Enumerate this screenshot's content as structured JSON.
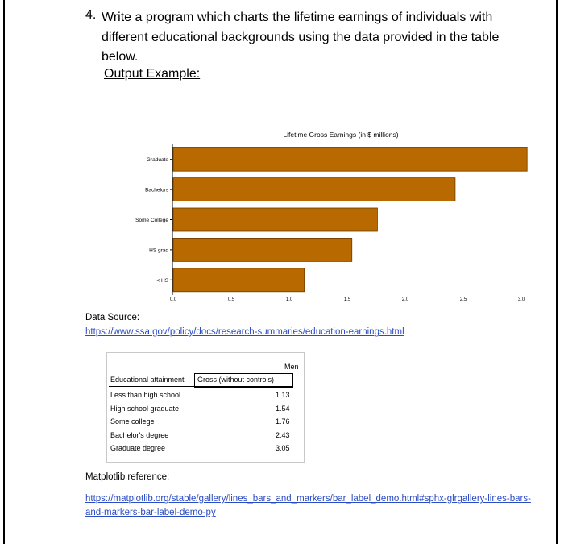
{
  "question": {
    "number": "4.",
    "text": "Write a program which charts the lifetime earnings of individuals with different educational backgrounds using the data provided in the table below.",
    "output_example": "Output Example:"
  },
  "chart_data": {
    "type": "bar",
    "orientation": "horizontal",
    "title": "Lifetime Gross Earnings (in $ millions)",
    "categories": [
      "Graduate",
      "Bachelors",
      "Some College",
      "HS grad",
      "< HS"
    ],
    "values": [
      3.05,
      2.43,
      1.76,
      1.54,
      1.13
    ],
    "xlim": [
      0,
      3.0
    ],
    "xticks": [
      "0.0",
      "0.5",
      "1.0",
      "1.5",
      "2.0",
      "2.5",
      "3.0"
    ],
    "bar_color": "#b86a00",
    "grid": false
  },
  "data_source": {
    "label": "Data Source:",
    "url": "https://www.ssa.gov/policy/docs/research-summaries/education-earnings.html"
  },
  "table": {
    "group_header": "Men",
    "col1_header": "Educational attainment",
    "col2_header": "Gross (without controls)",
    "rows": [
      {
        "label": "Less than high school",
        "value": "1.13"
      },
      {
        "label": "High school graduate",
        "value": "1.54"
      },
      {
        "label": "Some college",
        "value": "1.76"
      },
      {
        "label": "Bachelor's degree",
        "value": "2.43"
      },
      {
        "label": "Graduate degree",
        "value": "3.05"
      }
    ]
  },
  "matplotlib_reference": {
    "label": "Matplotlib reference:",
    "url_line1": "https://matplotlib.org/stable/gallery/lines_bars_and_markers/bar_label_demo.html#sphx-glrgallery-lines-bars-",
    "url_line2": "and-markers-bar-label-demo-py"
  }
}
